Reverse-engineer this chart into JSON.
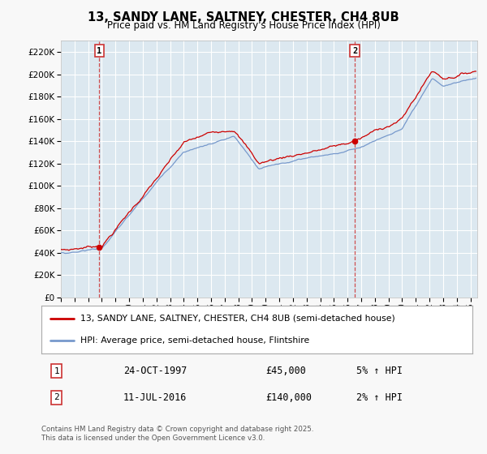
{
  "title": "13, SANDY LANE, SALTNEY, CHESTER, CH4 8UB",
  "subtitle": "Price paid vs. HM Land Registry's House Price Index (HPI)",
  "bg_color": "#f8f8f8",
  "plot_bg_color": "#dce8f0",
  "grid_color": "#ffffff",
  "red_line_color": "#cc0000",
  "blue_line_color": "#7799cc",
  "vline_color": "#cc3333",
  "ylim": [
    0,
    230000
  ],
  "yticks": [
    0,
    20000,
    40000,
    60000,
    80000,
    100000,
    120000,
    140000,
    160000,
    180000,
    200000,
    220000
  ],
  "ytick_labels": [
    "£0",
    "£20K",
    "£40K",
    "£60K",
    "£80K",
    "£100K",
    "£120K",
    "£140K",
    "£160K",
    "£180K",
    "£200K",
    "£220K"
  ],
  "xmin": 1995.0,
  "xmax": 2025.5,
  "xticks": [
    1995,
    1996,
    1997,
    1998,
    1999,
    2000,
    2001,
    2002,
    2003,
    2004,
    2005,
    2006,
    2007,
    2008,
    2009,
    2010,
    2011,
    2012,
    2013,
    2014,
    2015,
    2016,
    2017,
    2018,
    2019,
    2020,
    2021,
    2022,
    2023,
    2024,
    2025
  ],
  "sale1_x": 1997.81,
  "sale1_y": 45000,
  "sale1_label": "1",
  "sale1_date": "24-OCT-1997",
  "sale1_price": "£45,000",
  "sale1_hpi": "5% ↑ HPI",
  "sale2_x": 2016.53,
  "sale2_y": 140000,
  "sale2_label": "2",
  "sale2_date": "11-JUL-2016",
  "sale2_price": "£140,000",
  "sale2_hpi": "2% ↑ HPI",
  "legend_line1": "13, SANDY LANE, SALTNEY, CHESTER, CH4 8UB (semi-detached house)",
  "legend_line2": "HPI: Average price, semi-detached house, Flintshire",
  "footnote": "Contains HM Land Registry data © Crown copyright and database right 2025.\nThis data is licensed under the Open Government Licence v3.0."
}
